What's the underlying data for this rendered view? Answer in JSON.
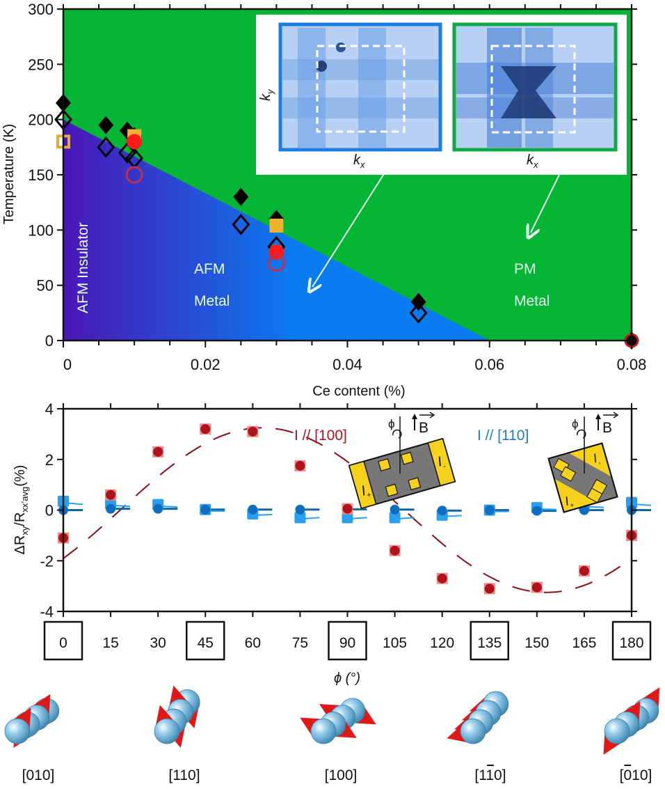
{
  "chart_data": [
    {
      "type": "scatter",
      "title": "",
      "xlabel": "Ce content (%)",
      "ylabel": "Temperature (K)",
      "xlim": [
        0,
        0.08
      ],
      "ylim": [
        0,
        300
      ],
      "xticks": [
        0,
        0.02,
        0.04,
        0.06,
        0.08
      ],
      "xtick_labels": [
        "0",
        "0.02",
        "0.04",
        "0.06",
        "0.08"
      ],
      "yticks": [
        0,
        50,
        100,
        150,
        200,
        250,
        300
      ],
      "ytick_labels": [
        "0",
        "50",
        "100",
        "150",
        "200",
        "250",
        "300"
      ],
      "regions": [
        {
          "name": "AFM Insulator",
          "label": "AFM Insulator",
          "color": "#4a16b8"
        },
        {
          "name": "AFM Metal",
          "label_lines": [
            "AFM",
            "Metal"
          ],
          "color": "#0a7cf0",
          "boundary": [
            [
              0,
              200
            ],
            [
              0.06,
              0
            ]
          ]
        },
        {
          "name": "PM Metal",
          "label_lines": [
            "PM",
            "Metal"
          ],
          "color": "#05b535"
        }
      ],
      "series": [
        {
          "name": "filled-diamond",
          "marker": "diamond-filled",
          "color": "#000000",
          "points": [
            [
              0,
              215
            ],
            [
              0.006,
              195
            ],
            [
              0.009,
              190
            ],
            [
              0.01,
              185
            ],
            [
              0.025,
              130
            ],
            [
              0.03,
              110
            ],
            [
              0.05,
              35
            ],
            [
              0.08,
              0
            ]
          ]
        },
        {
          "name": "open-diamond",
          "marker": "diamond-open",
          "color": "#000000",
          "points": [
            [
              0,
              200
            ],
            [
              0.006,
              175
            ],
            [
              0.009,
              170
            ],
            [
              0.01,
              165
            ],
            [
              0.025,
              105
            ],
            [
              0.03,
              85
            ],
            [
              0.05,
              25
            ]
          ]
        },
        {
          "name": "open-square",
          "marker": "square-open",
          "color": "#e3a93a",
          "points": [
            [
              0,
              180
            ]
          ]
        },
        {
          "name": "filled-square",
          "marker": "square-filled",
          "color": "#f0b030",
          "points": [
            [
              0.01,
              185
            ],
            [
              0.03,
              104
            ]
          ]
        },
        {
          "name": "filled-circle",
          "marker": "circle-filled",
          "color": "#ff1a1a",
          "points": [
            [
              0.01,
              180
            ],
            [
              0.03,
              80
            ],
            [
              0.08,
              0
            ]
          ]
        },
        {
          "name": "open-circle",
          "marker": "circle-open",
          "color": "#c0304a",
          "points": [
            [
              0.01,
              150
            ],
            [
              0.03,
              70
            ]
          ]
        }
      ],
      "inset": {
        "panels": [
          {
            "name": "afm-metal-map",
            "frame_color": "#1c7fe0",
            "xlabel": "k",
            "xlabel_sub": "x",
            "ylabel": "k",
            "ylabel_sub": "y"
          },
          {
            "name": "pm-metal-map",
            "frame_color": "#0fa845",
            "xlabel": "k",
            "xlabel_sub": "x"
          }
        ]
      }
    },
    {
      "type": "line",
      "title": "",
      "xlabel": "ϕ (°)",
      "ylabel": "ΔR",
      "ylabel_sub1": "xy",
      "ylabel_mid": "/R",
      "ylabel_sub2": "xx’avg",
      "ylabel_tail": "(%)",
      "xlim": [
        0,
        180
      ],
      "ylim": [
        -4,
        4
      ],
      "x": [
        0,
        15,
        30,
        45,
        60,
        75,
        90,
        105,
        120,
        135,
        150,
        165,
        180
      ],
      "xtick_labels": [
        "0",
        "15",
        "30",
        "45",
        "60",
        "75",
        "90",
        "105",
        "120",
        "135",
        "150",
        "165",
        "180"
      ],
      "boxed_ticks": [
        "0",
        "45",
        "90",
        "135",
        "180"
      ],
      "yticks": [
        -4,
        -2,
        0,
        2,
        4
      ],
      "ytick_labels": [
        "-4",
        "-2",
        "0",
        "2",
        "4"
      ],
      "series": [
        {
          "name": "I // [100]",
          "label": "I // [100]",
          "color": "#b0121c",
          "values": [
            -1.1,
            0.6,
            2.3,
            3.2,
            3.1,
            1.75,
            0.05,
            -1.6,
            -2.7,
            -3.1,
            -3.05,
            -2.4,
            -1.0
          ]
        },
        {
          "name": "I // [110] circles",
          "label": "I // [110]",
          "color": "#0e6fc0",
          "values": [
            0.0,
            0.05,
            0.05,
            0.02,
            0.02,
            0.02,
            0.03,
            0.02,
            -0.02,
            0.0,
            -0.03,
            0.0,
            0.0
          ]
        },
        {
          "name": "I // [110] squares",
          "color": "#2a9ff0",
          "values": [
            0.35,
            0.25,
            0.22,
            0.02,
            -0.15,
            -0.3,
            -0.3,
            -0.3,
            -0.2,
            0.0,
            0.1,
            0.2,
            0.3
          ]
        }
      ],
      "device_insets": [
        {
          "name": "device-100",
          "phi": "ϕ",
          "field": "B",
          "contacts": [
            "I+",
            "I-"
          ]
        },
        {
          "name": "device-110",
          "phi": "ϕ",
          "field": "B",
          "contacts": [
            "I+",
            "I-"
          ]
        }
      ]
    }
  ],
  "spin_chains": [
    {
      "phi": 0,
      "label": "[010]",
      "overbar_index": null
    },
    {
      "phi": 45,
      "label": "[110]",
      "overbar_index": null
    },
    {
      "phi": 90,
      "label": "[100]",
      "overbar_index": null
    },
    {
      "phi": 135,
      "label": "[110]",
      "overbar_index": 2
    },
    {
      "phi": 180,
      "label": "[010]",
      "overbar_index": 1
    }
  ],
  "text": {
    "region_afm_insulator": "AFM Insulator",
    "region_afm": "AFM",
    "region_afm_metal": "Metal",
    "region_pm": "PM",
    "region_pm_metal": "Metal",
    "kx": "k",
    "kx_sub": "x",
    "ky": "k",
    "ky_sub": "y",
    "series_100": "I // [100]",
    "series_110": "I // [110]",
    "phi_symbol": "ϕ",
    "B": "B",
    "I": "I",
    "plus": "+",
    "minus": "-"
  }
}
